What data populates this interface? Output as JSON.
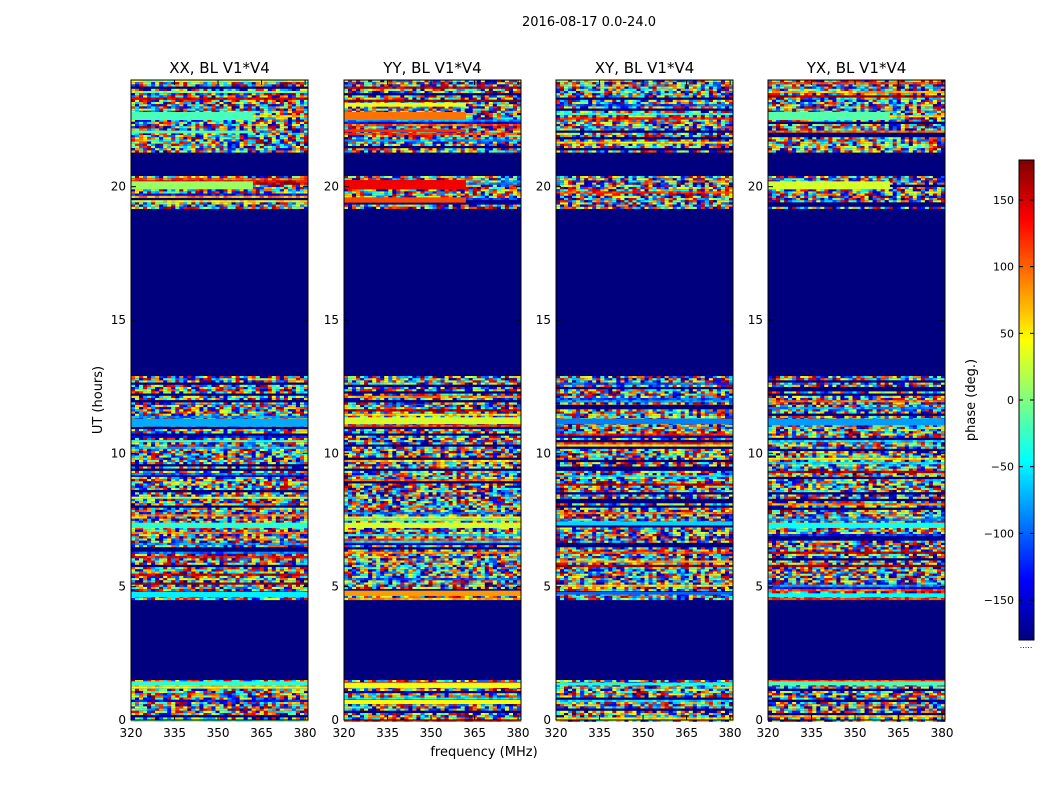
{
  "chart_data": {
    "type": "heatmap",
    "suptitle": "2016-08-17 0.0-24.0",
    "xlabel": "frequency (MHz)",
    "ylabel": "UT (hours)",
    "xlim": [
      320,
      381
    ],
    "ylim": [
      0,
      24
    ],
    "xticks": [
      320,
      335,
      350,
      365,
      380
    ],
    "yticks": [
      0,
      5,
      10,
      15,
      20
    ],
    "colorbar": {
      "label": "phase (deg.)",
      "range": [
        -180,
        180
      ],
      "ticks": [
        150,
        100,
        50,
        0,
        -50,
        -100,
        -150
      ],
      "tick_labels": [
        "150",
        "100",
        "50",
        "0",
        "−50",
        "−100",
        "−150"
      ],
      "colormap": "jet",
      "stops": [
        "#00007f",
        "#0000ff",
        "#007fff",
        "#00ffff",
        "#7fff7f",
        "#ffff00",
        "#ff7f00",
        "#ff0000",
        "#7f0000"
      ],
      "footer": "....."
    },
    "empty_color": "#00007f",
    "panels": [
      {
        "title": "XX, BL V1*V4",
        "solid_bands": [
          {
            "start": 19.9,
            "end": 20.2,
            "phase": 10,
            "freq_end": 362
          },
          {
            "start": 22.5,
            "end": 22.8,
            "phase": -20,
            "freq_end": 362
          },
          {
            "start": 22.0,
            "end": 22.1,
            "phase": -15,
            "freq_end": 362
          },
          {
            "start": 11.0,
            "end": 11.3,
            "phase": -75,
            "freq_end": 381
          },
          {
            "start": 7.2,
            "end": 7.4,
            "phase": -30,
            "freq_end": 381
          },
          {
            "start": 4.6,
            "end": 4.8,
            "phase": -50,
            "freq_end": 381
          },
          {
            "start": 1.3,
            "end": 1.45,
            "phase": -30,
            "freq_end": 381
          }
        ]
      },
      {
        "title": "YY, BL V1*V4",
        "solid_bands": [
          {
            "start": 19.9,
            "end": 20.25,
            "phase": 140,
            "freq_end": 362
          },
          {
            "start": 19.4,
            "end": 19.6,
            "phase": 110,
            "freq_end": 362
          },
          {
            "start": 22.5,
            "end": 22.8,
            "phase": 95,
            "freq_end": 362
          },
          {
            "start": 22.05,
            "end": 22.15,
            "phase": 120,
            "freq_end": 362
          },
          {
            "start": 23.0,
            "end": 23.15,
            "phase": 40,
            "freq_end": 362
          },
          {
            "start": 11.1,
            "end": 11.35,
            "phase": 30,
            "freq_end": 381
          },
          {
            "start": 7.2,
            "end": 7.4,
            "phase": 30,
            "freq_end": 381
          },
          {
            "start": 4.65,
            "end": 4.85,
            "phase": 80,
            "freq_end": 381
          },
          {
            "start": 1.2,
            "end": 1.4,
            "phase": 40,
            "freq_end": 381
          },
          {
            "start": 0.6,
            "end": 0.75,
            "phase": 45,
            "freq_end": 381
          }
        ]
      },
      {
        "title": "XY, BL V1*V4",
        "solid_bands": [
          {
            "start": 11.1,
            "end": 11.3,
            "phase": -90,
            "freq_end": 381
          },
          {
            "start": 7.3,
            "end": 7.45,
            "phase": -60,
            "freq_end": 381
          },
          {
            "start": 4.7,
            "end": 4.8,
            "phase": -100,
            "freq_end": 381
          },
          {
            "start": 1.3,
            "end": 1.4,
            "phase": -40,
            "freq_end": 381
          }
        ]
      },
      {
        "title": "YX, BL V1*V4",
        "solid_bands": [
          {
            "start": 19.9,
            "end": 20.2,
            "phase": 30,
            "freq_end": 362
          },
          {
            "start": 22.5,
            "end": 22.8,
            "phase": -15,
            "freq_end": 362
          },
          {
            "start": 11.05,
            "end": 11.3,
            "phase": -80,
            "freq_end": 381
          },
          {
            "start": 7.2,
            "end": 7.4,
            "phase": -40,
            "freq_end": 381
          },
          {
            "start": 4.6,
            "end": 4.75,
            "phase": -45,
            "freq_end": 381
          },
          {
            "start": 1.3,
            "end": 1.45,
            "phase": -20,
            "freq_end": 381
          }
        ]
      }
    ],
    "data_ranges": [
      {
        "start": 0.0,
        "end": 1.5
      },
      {
        "start": 4.5,
        "end": 9.2
      },
      {
        "start": 9.2,
        "end": 11.9
      },
      {
        "start": 11.9,
        "end": 12.9
      },
      {
        "start": 19.2,
        "end": 20.4
      },
      {
        "start": 21.3,
        "end": 24.0
      }
    ],
    "blank_ranges": [
      {
        "start": 1.5,
        "end": 4.5
      },
      {
        "start": 12.9,
        "end": 19.2
      },
      {
        "start": 20.4,
        "end": 21.3
      }
    ]
  }
}
